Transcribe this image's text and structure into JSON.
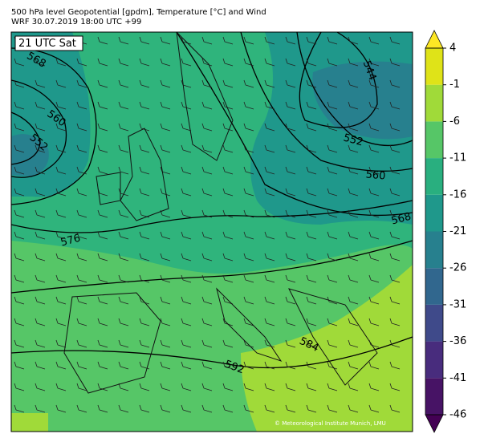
{
  "header": {
    "title": "500 hPa level Geopotential [gpdm], Temperature [°C] and Wind",
    "subtitle": "WRF 30.07.2019 18:00 UTC +99"
  },
  "map": {
    "time_label": "21 UTC Sat",
    "contour_labels": [
      "568",
      "560",
      "552",
      "576",
      "584",
      "592",
      "544",
      "552",
      "560",
      "568"
    ],
    "credit": "© Meteorological Institute Munich, LMU"
  },
  "colorbar": {
    "ticks": [
      -46,
      -41,
      -36,
      -31,
      -26,
      -21,
      -16,
      -11,
      -6,
      -1,
      4
    ],
    "colors": [
      "#471365",
      "#482c7d",
      "#3f4a8a",
      "#31678e",
      "#27808e",
      "#1f988b",
      "#29af7f",
      "#56c667",
      "#a0da39",
      "#dfe318"
    ],
    "under_color": "#440154",
    "over_color": "#fde725"
  }
}
